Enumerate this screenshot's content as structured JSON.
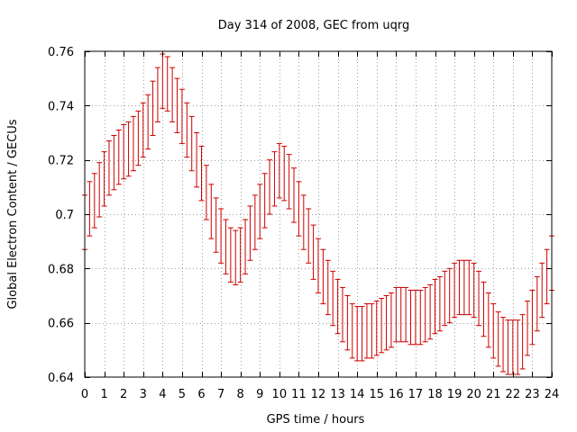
{
  "chart_data": {
    "type": "scatter",
    "style": "errorbars",
    "title": "Day 314 of 2008, GEC from uqrg",
    "xlabel": "GPS time / hours",
    "ylabel": "Global Electron Content / GECUs",
    "xlim": [
      0,
      24
    ],
    "ylim": [
      0.64,
      0.76
    ],
    "grid": true,
    "series_color": "#cc0000",
    "xticks": [
      "0",
      "1",
      "2",
      "3",
      "4",
      "5",
      "6",
      "7",
      "8",
      "9",
      "10",
      "11",
      "12",
      "13",
      "14",
      "15",
      "16",
      "17",
      "18",
      "19",
      "20",
      "21",
      "22",
      "23",
      "24"
    ],
    "xtick_values": [
      0,
      1,
      2,
      3,
      4,
      5,
      6,
      7,
      8,
      9,
      10,
      11,
      12,
      13,
      14,
      15,
      16,
      17,
      18,
      19,
      20,
      21,
      22,
      23,
      24
    ],
    "yticks": [
      "0.64",
      "0.66",
      "0.68",
      "0.7",
      "0.72",
      "0.74",
      "0.76"
    ],
    "ytick_values": [
      0.64,
      0.66,
      0.68,
      0.7,
      0.72,
      0.74,
      0.76
    ],
    "x": [
      0.0,
      0.25,
      0.5,
      0.75,
      1.0,
      1.25,
      1.5,
      1.75,
      2.0,
      2.25,
      2.5,
      2.75,
      3.0,
      3.25,
      3.5,
      3.75,
      4.0,
      4.25,
      4.5,
      4.75,
      5.0,
      5.25,
      5.5,
      5.75,
      6.0,
      6.25,
      6.5,
      6.75,
      7.0,
      7.25,
      7.5,
      7.75,
      8.0,
      8.25,
      8.5,
      8.75,
      9.0,
      9.25,
      9.5,
      9.75,
      10.0,
      10.25,
      10.5,
      10.75,
      11.0,
      11.25,
      11.5,
      11.75,
      12.0,
      12.25,
      12.5,
      12.75,
      13.0,
      13.25,
      13.5,
      13.75,
      14.0,
      14.25,
      14.5,
      14.75,
      15.0,
      15.25,
      15.5,
      15.75,
      16.0,
      16.25,
      16.5,
      16.75,
      17.0,
      17.25,
      17.5,
      17.75,
      18.0,
      18.25,
      18.5,
      18.75,
      19.0,
      19.25,
      19.5,
      19.75,
      20.0,
      20.25,
      20.5,
      20.75,
      21.0,
      21.25,
      21.5,
      21.75,
      22.0,
      22.25,
      22.5,
      22.75,
      23.0,
      23.25,
      23.5,
      23.75,
      24.0
    ],
    "y": [
      0.697,
      0.702,
      0.705,
      0.709,
      0.713,
      0.717,
      0.719,
      0.721,
      0.723,
      0.724,
      0.726,
      0.728,
      0.731,
      0.734,
      0.739,
      0.744,
      0.749,
      0.748,
      0.744,
      0.74,
      0.736,
      0.731,
      0.726,
      0.72,
      0.715,
      0.708,
      0.701,
      0.696,
      0.692,
      0.688,
      0.685,
      0.684,
      0.685,
      0.688,
      0.693,
      0.697,
      0.701,
      0.705,
      0.71,
      0.713,
      0.716,
      0.715,
      0.712,
      0.707,
      0.702,
      0.697,
      0.692,
      0.686,
      0.681,
      0.677,
      0.673,
      0.669,
      0.666,
      0.663,
      0.66,
      0.657,
      0.656,
      0.656,
      0.657,
      0.657,
      0.658,
      0.659,
      0.66,
      0.661,
      0.663,
      0.663,
      0.663,
      0.662,
      0.662,
      0.662,
      0.663,
      0.664,
      0.666,
      0.667,
      0.669,
      0.67,
      0.672,
      0.673,
      0.673,
      0.673,
      0.672,
      0.669,
      0.665,
      0.661,
      0.657,
      0.654,
      0.652,
      0.651,
      0.651,
      0.651,
      0.653,
      0.658,
      0.662,
      0.667,
      0.672,
      0.677,
      0.682
    ],
    "err": 0.01
  }
}
